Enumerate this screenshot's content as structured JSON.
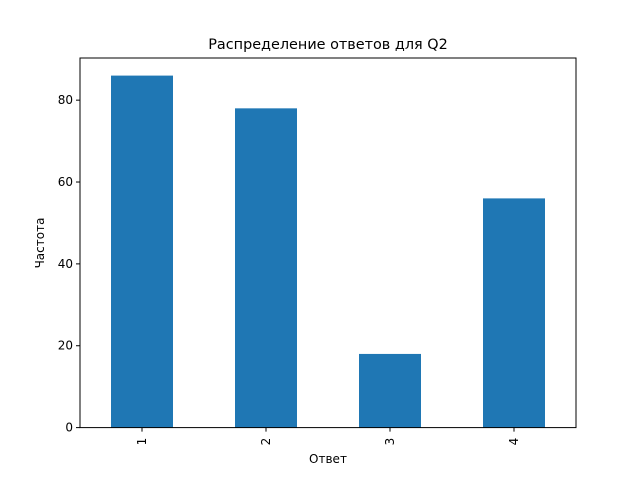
{
  "chart_data": {
    "type": "bar",
    "title": "Распределение ответов для Q2",
    "xlabel": "Ответ",
    "ylabel": "Частота",
    "categories": [
      "1",
      "2",
      "3",
      "4"
    ],
    "values": [
      86,
      78,
      18,
      56
    ],
    "ylim": [
      0,
      90.3
    ],
    "yticks": [
      "0",
      "20",
      "40",
      "60",
      "80"
    ],
    "bar_color": "#1f77b4",
    "grid": false,
    "legend": false
  }
}
